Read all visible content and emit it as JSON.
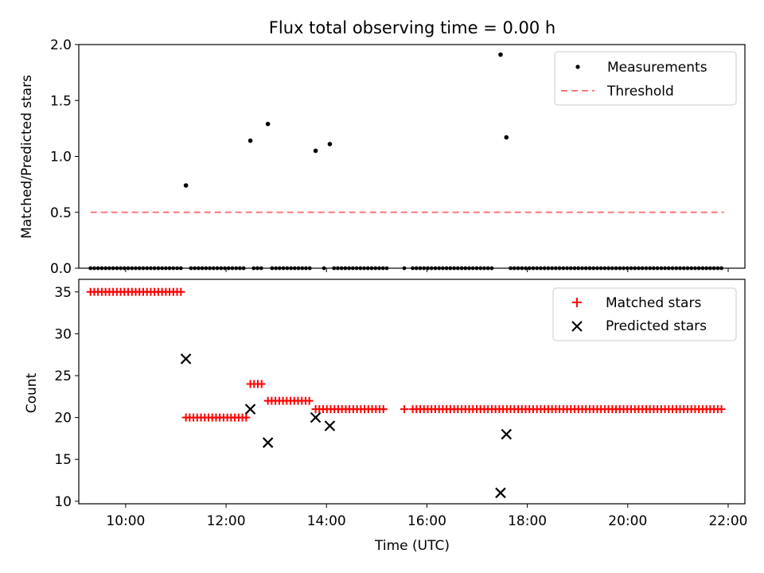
{
  "chart_data": [
    {
      "type": "scatter",
      "title": "Flux total observing time = 0.00 h",
      "xlabel": "",
      "ylabel": "Matched/Predicted stars",
      "xlim": [
        "09:04",
        "22:20"
      ],
      "ylim": [
        0,
        2.0
      ],
      "yticks": [
        0.0,
        0.5,
        1.0,
        1.5,
        2.0
      ],
      "ytick_labels": [
        "0.0",
        "0.5",
        "1.0",
        "1.5",
        "2.0"
      ],
      "grid": false,
      "legend_position": "top-right",
      "series": [
        {
          "name": "Measurements",
          "marker": "dot",
          "color": "#000000",
          "points": [
            [
              "11:12",
              0.74
            ],
            [
              "12:29",
              1.14
            ],
            [
              "12:50",
              1.29
            ],
            [
              "13:47",
              1.05
            ],
            [
              "14:04",
              1.11
            ],
            [
              "17:28",
              1.91
            ],
            [
              "17:35",
              1.17
            ]
          ],
          "zero_segments": [
            [
              "09:18",
              "11:08"
            ],
            [
              "11:18",
              "12:24"
            ],
            [
              "12:33",
              "12:45"
            ],
            [
              "12:55",
              "13:43"
            ],
            [
              "13:57",
              "14:00"
            ],
            [
              "14:09",
              "15:12"
            ],
            [
              "15:33",
              "15:35"
            ],
            [
              "15:43",
              "17:21"
            ],
            [
              "17:40",
              "21:55"
            ]
          ]
        },
        {
          "name": "Threshold",
          "style": "dashed",
          "color": "#ff7777",
          "points": [
            [
              "09:18",
              0.5
            ],
            [
              "21:55",
              0.5
            ]
          ]
        }
      ]
    },
    {
      "type": "scatter",
      "title": "",
      "xlabel": "Time (UTC)",
      "ylabel": "Count",
      "xlim": [
        "09:04",
        "22:20"
      ],
      "ylim": [
        9.7,
        36.5
      ],
      "yticks": [
        10,
        15,
        20,
        25,
        30,
        35
      ],
      "ytick_labels": [
        "10",
        "15",
        "20",
        "25",
        "30",
        "35"
      ],
      "xtick_labels": [
        "10:00",
        "12:00",
        "14:00",
        "16:00",
        "18:00",
        "20:00",
        "22:00"
      ],
      "grid": false,
      "legend_position": "top-right",
      "series": [
        {
          "name": "Matched stars",
          "marker": "plus",
          "color": "#ff0000",
          "runs": [
            {
              "from": "09:18",
              "to": "11:08",
              "value": 35
            },
            {
              "from": "11:12",
              "to": "12:24",
              "value": 20
            },
            {
              "from": "12:29",
              "to": "12:45",
              "value": 24
            },
            {
              "from": "12:50",
              "to": "13:43",
              "value": 22
            },
            {
              "from": "13:47",
              "to": "15:12",
              "value": 21
            },
            {
              "from": "15:33",
              "to": "15:33",
              "value": 21
            },
            {
              "from": "15:43",
              "to": "21:55",
              "value": 21
            }
          ]
        },
        {
          "name": "Predicted stars",
          "marker": "x",
          "color": "#000000",
          "points": [
            [
              "11:12",
              27
            ],
            [
              "12:29",
              21
            ],
            [
              "12:50",
              17
            ],
            [
              "13:47",
              20
            ],
            [
              "14:04",
              19
            ],
            [
              "17:28",
              11
            ],
            [
              "17:35",
              18
            ]
          ]
        }
      ]
    }
  ]
}
